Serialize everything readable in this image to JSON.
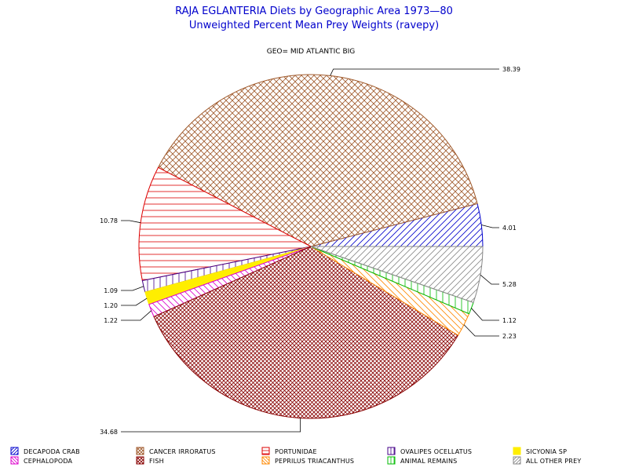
{
  "chart_data": {
    "type": "pie",
    "title": "RAJA EGLANTERIA Diets by Geographic Area 1973—80",
    "subtitle": "Unweighted Percent Mean Prey Weights (ravepy)",
    "geo_label": "GEO= MID ATLANTIC BIG",
    "legend_placement": "bottom",
    "slices": [
      {
        "name": "DECAPODA CRAB",
        "value": 4.01,
        "label": "4.01",
        "color": "#0000cc",
        "pattern": "diag-up"
      },
      {
        "name": "CANCER IRRORATUS",
        "value": 38.39,
        "label": "38.39",
        "color": "#a05a2c",
        "pattern": "cross"
      },
      {
        "name": "PORTUNIDAE",
        "value": 10.78,
        "label": "10.78",
        "color": "#dd0000",
        "pattern": "horizontal"
      },
      {
        "name": "OVALIPES OCELLATUS",
        "value": 1.09,
        "label": "1.09",
        "color": "#440088",
        "pattern": "vertical"
      },
      {
        "name": "SICYONIA SP",
        "value": 1.2,
        "label": "1.20",
        "color": "#ffee00",
        "pattern": "solid"
      },
      {
        "name": "CEPHALOPODA",
        "value": 1.22,
        "label": "1.22",
        "color": "#dd00cc",
        "pattern": "diag-down"
      },
      {
        "name": "FISH",
        "value": 34.68,
        "label": "34.68",
        "color": "#880000",
        "pattern": "cross-dense"
      },
      {
        "name": "PEPRILUS TRIACANTHUS",
        "value": 2.23,
        "label": "2.23",
        "color": "#ff8800",
        "pattern": "diag-down"
      },
      {
        "name": "ANIMAL REMAINS",
        "value": 1.12,
        "label": "1.12",
        "color": "#00bb00",
        "pattern": "vertical"
      },
      {
        "name": "ALL OTHER PREY",
        "value": 5.28,
        "label": "5.28",
        "color": "#888888",
        "pattern": "diag-up"
      }
    ],
    "legend_order": [
      "DECAPODA CRAB",
      "CANCER IRRORATUS",
      "PORTUNIDAE",
      "OVALIPES OCELLATUS",
      "SICYONIA SP",
      "CEPHALOPODA",
      "FISH",
      "PEPRILUS TRIACANTHUS",
      "ANIMAL REMAINS",
      "ALL OTHER PREY"
    ]
  }
}
